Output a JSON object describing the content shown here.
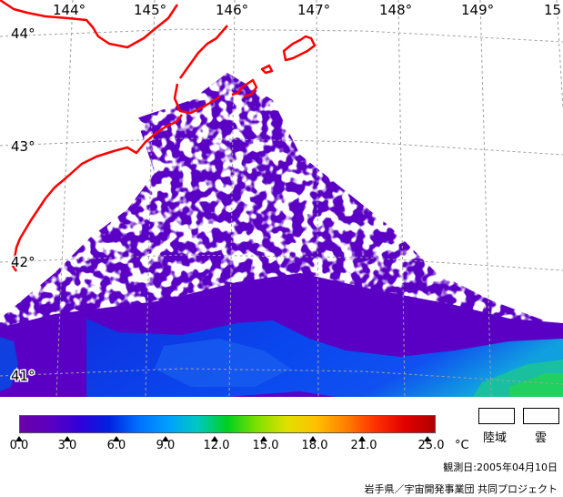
{
  "map": {
    "longitude_labels": [
      "144°",
      "145°",
      "146°",
      "147°",
      "148°",
      "149°",
      "15"
    ],
    "latitude_labels": [
      "44°",
      "43°",
      "42°",
      "41°"
    ],
    "coastline_color": "#ff0000",
    "gridline_color": "#a0a0a0"
  },
  "legend": {
    "ticks": [
      "0.0",
      "3.0",
      "6.0",
      "9.0",
      "12.0",
      "15.0",
      "18.0",
      "21.0",
      "25.0"
    ],
    "unit": "°C",
    "colors": [
      "#6a00a8",
      "#5b00c0",
      "#3200d8",
      "#0020e0",
      "#0070ff",
      "#00a0ff",
      "#00c8c0",
      "#00d020",
      "#80e000",
      "#e0e000",
      "#ffc000",
      "#ff8000",
      "#ff3000",
      "#e00000",
      "#b00000"
    ],
    "land_label": "陸域",
    "cloud_label": "雲"
  },
  "observation_date": "観測日:2005年04月10日",
  "credit": "岩手県／宇宙開発事業団 共同プロジェクト"
}
